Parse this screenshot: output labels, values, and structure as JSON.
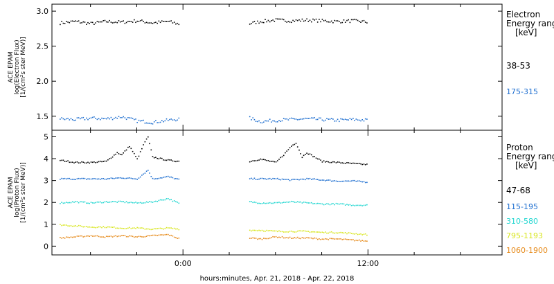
{
  "colors": {
    "black": "#000000",
    "blue": "#1f6fd0",
    "cyan": "#1fd6d0",
    "yellow": "#d8e61e",
    "orange": "#e68a1a"
  },
  "xaxis": {
    "label": "hours:minutes, Apr. 21, 2018 - Apr. 22, 2018",
    "range_hours": [
      -8.5,
      20.7
    ],
    "ticks": [
      {
        "hours": 0,
        "label": "0:00"
      },
      {
        "hours": 12,
        "label": "12:00"
      }
    ],
    "minor_ticks_hours": [
      -6,
      -3,
      3,
      6,
      9,
      15,
      18
    ]
  },
  "electron_panel": {
    "ylabel_lines": [
      "ACE EPAM",
      "log(Electron Flux)",
      "[1/(cm²s ster MeV)]"
    ],
    "ylim": [
      1.3,
      3.1
    ],
    "ticks": [
      {
        "v": 1.5,
        "label": "1.5"
      },
      {
        "v": 2.0,
        "label": "2.0"
      },
      {
        "v": 2.5,
        "label": "2.5"
      },
      {
        "v": 3.0,
        "label": "3.0"
      }
    ],
    "legend_title_lines": [
      "Electron",
      "Energy ranges",
      "[keV]"
    ],
    "legend_entries": [
      {
        "label": "38-53",
        "color": "black"
      },
      {
        "label": "175-315",
        "color": "blue"
      }
    ]
  },
  "proton_panel": {
    "ylabel_lines": [
      "ACE EPAM",
      "log(Proton Flux)",
      "[1/(cm²s ster MeV)]"
    ],
    "ylim": [
      -0.4,
      5.3
    ],
    "ticks": [
      {
        "v": 0,
        "label": "0"
      },
      {
        "v": 1,
        "label": "1"
      },
      {
        "v": 2,
        "label": "2"
      },
      {
        "v": 3,
        "label": "3"
      },
      {
        "v": 4,
        "label": "4"
      },
      {
        "v": 5,
        "label": "5"
      }
    ],
    "legend_title_lines": [
      "Proton",
      "Energy ranges",
      "[keV]"
    ],
    "legend_entries": [
      {
        "label": "47-68",
        "color": "black"
      },
      {
        "label": "115-195",
        "color": "blue"
      },
      {
        "label": "310-580",
        "color": "cyan"
      },
      {
        "label": "795-1193",
        "color": "yellow"
      },
      {
        "label": "1060-1900",
        "color": "orange"
      }
    ]
  },
  "chart_data": [
    {
      "type": "scatter",
      "title": "",
      "xlabel": "hours:minutes, Apr. 21, 2018 - Apr. 22, 2018",
      "ylabel": "ACE EPAM log(Electron Flux) [1/(cm²s ster MeV)]",
      "ylim": [
        1.3,
        3.1
      ],
      "x_unit": "hours from 0:00 Apr. 22, 2018",
      "series": [
        {
          "name": "38-53",
          "color": "black",
          "points": [
            [
              -8,
              2.84
            ],
            [
              -7,
              2.86
            ],
            [
              -6,
              2.83
            ],
            [
              -5,
              2.86
            ],
            [
              -4,
              2.85
            ],
            [
              -3,
              2.87
            ],
            [
              -2,
              2.84
            ],
            [
              -1,
              2.86
            ],
            [
              -0.2,
              2.82
            ],
            [
              4.3,
              2.83
            ],
            [
              5,
              2.86
            ],
            [
              6,
              2.88
            ],
            [
              7,
              2.87
            ],
            [
              8,
              2.88
            ],
            [
              9,
              2.87
            ],
            [
              10,
              2.86
            ],
            [
              11,
              2.87
            ],
            [
              12,
              2.85
            ]
          ]
        },
        {
          "name": "175-315",
          "color": "blue",
          "points": [
            [
              -8,
              1.47
            ],
            [
              -7,
              1.46
            ],
            [
              -6,
              1.48
            ],
            [
              -5,
              1.47
            ],
            [
              -4,
              1.5
            ],
            [
              -3,
              1.44
            ],
            [
              -2,
              1.42
            ],
            [
              -1,
              1.45
            ],
            [
              -0.2,
              1.47
            ],
            [
              4.3,
              1.48
            ],
            [
              5,
              1.43
            ],
            [
              6,
              1.45
            ],
            [
              7,
              1.46
            ],
            [
              8,
              1.47
            ],
            [
              9,
              1.46
            ],
            [
              10,
              1.45
            ],
            [
              11,
              1.46
            ],
            [
              12,
              1.45
            ]
          ]
        }
      ]
    },
    {
      "type": "scatter",
      "title": "",
      "xlabel": "hours:minutes, Apr. 21, 2018 - Apr. 22, 2018",
      "ylabel": "ACE EPAM log(Proton Flux) [1/(cm²s ster MeV)]",
      "ylim": [
        -0.4,
        5.3
      ],
      "x_unit": "hours from 0:00 Apr. 22, 2018",
      "series": [
        {
          "name": "47-68",
          "color": "black",
          "points": [
            [
              -8,
              3.95
            ],
            [
              -7,
              3.85
            ],
            [
              -6,
              3.85
            ],
            [
              -5,
              3.9
            ],
            [
              -4.3,
              4.3
            ],
            [
              -4,
              4.2
            ],
            [
              -3.5,
              4.6
            ],
            [
              -3,
              4.0
            ],
            [
              -2.5,
              4.8
            ],
            [
              -2.3,
              5.0
            ],
            [
              -2,
              4.1
            ],
            [
              -1,
              3.95
            ],
            [
              -0.2,
              3.9
            ],
            [
              4.3,
              3.9
            ],
            [
              5,
              4.0
            ],
            [
              6,
              3.85
            ],
            [
              6.5,
              4.2
            ],
            [
              7,
              4.6
            ],
            [
              7.3,
              4.75
            ],
            [
              7.7,
              4.1
            ],
            [
              8,
              4.3
            ],
            [
              9,
              3.9
            ],
            [
              10,
              3.85
            ],
            [
              11,
              3.8
            ],
            [
              12,
              3.75
            ]
          ]
        },
        {
          "name": "115-195",
          "color": "blue",
          "points": [
            [
              -8,
              3.1
            ],
            [
              -7,
              3.1
            ],
            [
              -6,
              3.1
            ],
            [
              -5,
              3.1
            ],
            [
              -4,
              3.15
            ],
            [
              -3,
              3.1
            ],
            [
              -2.3,
              3.5
            ],
            [
              -2,
              3.1
            ],
            [
              -1,
              3.2
            ],
            [
              -0.2,
              3.05
            ],
            [
              4.3,
              3.1
            ],
            [
              5,
              3.1
            ],
            [
              6,
              3.1
            ],
            [
              7,
              3.05
            ],
            [
              8,
              3.1
            ],
            [
              9,
              3.05
            ],
            [
              10,
              3.0
            ],
            [
              11,
              3.0
            ],
            [
              12,
              2.95
            ]
          ]
        },
        {
          "name": "310-580",
          "color": "cyan",
          "points": [
            [
              -8,
              2.0
            ],
            [
              -7,
              2.05
            ],
            [
              -6,
              2.0
            ],
            [
              -5,
              2.05
            ],
            [
              -4,
              2.05
            ],
            [
              -3,
              2.0
            ],
            [
              -2,
              2.05
            ],
            [
              -1,
              2.2
            ],
            [
              -0.2,
              1.95
            ],
            [
              4.3,
              2.05
            ],
            [
              5,
              2.0
            ],
            [
              6,
              2.0
            ],
            [
              7,
              2.05
            ],
            [
              8,
              2.0
            ],
            [
              9,
              1.95
            ],
            [
              10,
              1.95
            ],
            [
              11,
              1.9
            ],
            [
              12,
              1.9
            ]
          ]
        },
        {
          "name": "795-1193",
          "color": "yellow",
          "points": [
            [
              -8,
              1.0
            ],
            [
              -7,
              0.95
            ],
            [
              -6,
              0.9
            ],
            [
              -5,
              0.9
            ],
            [
              -4,
              0.85
            ],
            [
              -3,
              0.85
            ],
            [
              -2,
              0.8
            ],
            [
              -1,
              0.85
            ],
            [
              -0.2,
              0.8
            ],
            [
              4.3,
              0.75
            ],
            [
              5,
              0.75
            ],
            [
              6,
              0.7
            ],
            [
              7,
              0.7
            ],
            [
              8,
              0.7
            ],
            [
              9,
              0.65
            ],
            [
              10,
              0.65
            ],
            [
              11,
              0.6
            ],
            [
              12,
              0.55
            ]
          ]
        },
        {
          "name": "1060-1900",
          "color": "orange",
          "points": [
            [
              -8,
              0.4
            ],
            [
              -7,
              0.45
            ],
            [
              -6,
              0.5
            ],
            [
              -5,
              0.45
            ],
            [
              -4,
              0.5
            ],
            [
              -3,
              0.45
            ],
            [
              -2,
              0.5
            ],
            [
              -1,
              0.55
            ],
            [
              -0.2,
              0.35
            ],
            [
              4.3,
              0.4
            ],
            [
              5,
              0.35
            ],
            [
              6,
              0.45
            ],
            [
              7,
              0.4
            ],
            [
              8,
              0.4
            ],
            [
              9,
              0.35
            ],
            [
              10,
              0.35
            ],
            [
              11,
              0.3
            ],
            [
              12,
              0.25
            ]
          ]
        }
      ]
    }
  ]
}
